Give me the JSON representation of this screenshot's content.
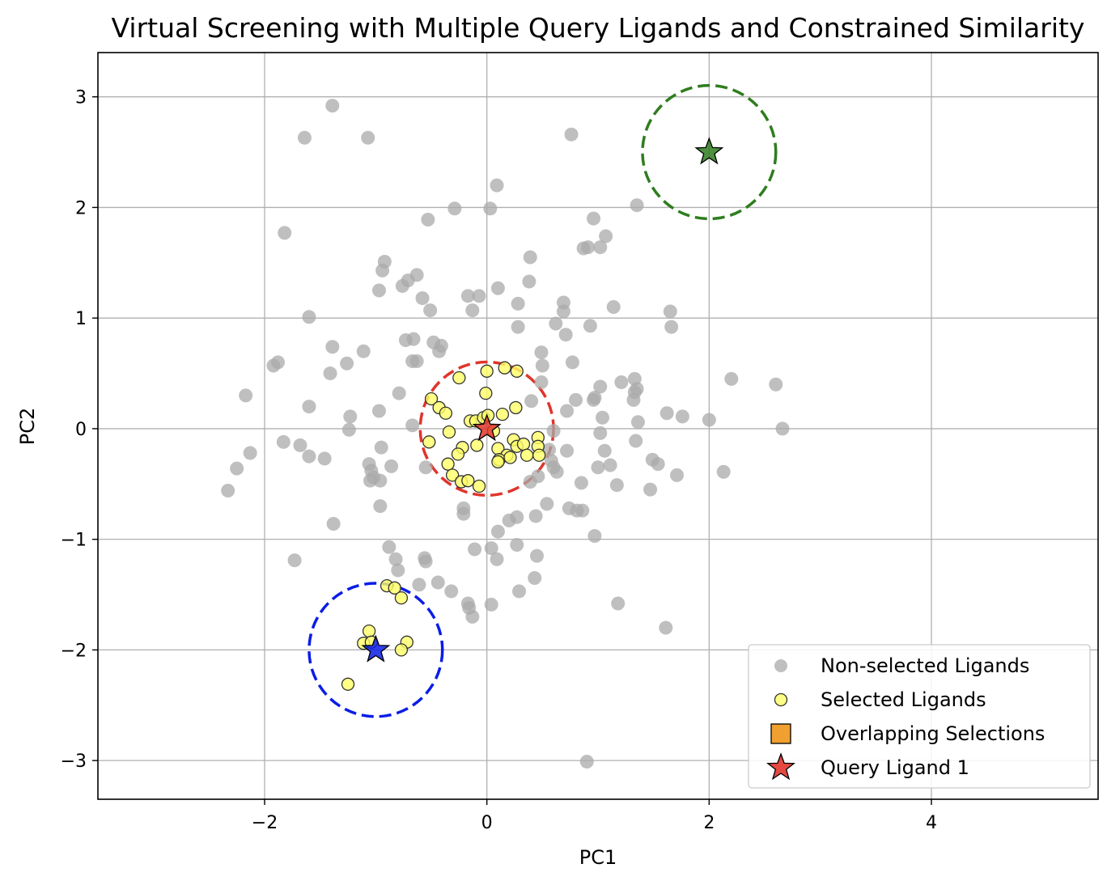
{
  "chart_data": {
    "type": "scatter",
    "title": "Virtual Screening with Multiple Query Ligands and Constrained Similarity",
    "xlabel": "PC1",
    "ylabel": "PC2",
    "xlim": [
      -3.5,
      5.5
    ],
    "ylim": [
      -3.35,
      3.4
    ],
    "xticks": [
      -2,
      0,
      2,
      4
    ],
    "xtick_labels": [
      "−2",
      "0",
      "2",
      "4"
    ],
    "yticks": [
      -3,
      -2,
      -1,
      0,
      1,
      2,
      3
    ],
    "ytick_labels": [
      "−3",
      "−2",
      "−1",
      "0",
      "1",
      "2",
      "3"
    ],
    "grid": true,
    "legend_position": "lower-right",
    "legend": [
      {
        "label": "Non-selected Ligands",
        "marker": "circle",
        "color": "#a9a9a9"
      },
      {
        "label": "Selected Ligands",
        "marker": "circle",
        "color": "#ffff66"
      },
      {
        "label": "Overlapping Selections",
        "marker": "square",
        "color": "#f0a030"
      },
      {
        "label": "Query Ligand 1",
        "marker": "star",
        "color": "#e0352b"
      }
    ],
    "colors": {
      "non_selected": "#a9a9a9",
      "selected_fill": "#ffff66",
      "selected_edge": "#333333",
      "grid": "#b0b0b0"
    },
    "queries": [
      {
        "x": 0,
        "y": 0,
        "radius": 0.6,
        "color": "#e0352b"
      },
      {
        "x": -1,
        "y": -2,
        "radius": 0.6,
        "color": "#0a1de6"
      },
      {
        "x": 2,
        "y": 2.5,
        "radius": 0.6,
        "color": "#2e7d1e"
      }
    ],
    "non_selected": [
      [
        -1.39,
        2.92
      ],
      [
        -1.64,
        2.63
      ],
      [
        -1.07,
        2.63
      ],
      [
        0.76,
        2.66
      ],
      [
        0.09,
        2.2
      ],
      [
        0.03,
        1.99
      ],
      [
        -0.29,
        1.99
      ],
      [
        -0.53,
        1.89
      ],
      [
        0.96,
        1.9
      ],
      [
        1.35,
        2.02
      ],
      [
        1.07,
        1.74
      ],
      [
        0.87,
        1.63
      ],
      [
        0.91,
        1.64
      ],
      [
        1.02,
        1.64
      ],
      [
        -1.82,
        1.77
      ],
      [
        0.39,
        1.55
      ],
      [
        -0.92,
        1.51
      ],
      [
        -0.94,
        1.43
      ],
      [
        -0.63,
        1.39
      ],
      [
        -0.71,
        1.34
      ],
      [
        -0.76,
        1.29
      ],
      [
        -0.97,
        1.25
      ],
      [
        0.1,
        1.27
      ],
      [
        0.38,
        1.33
      ],
      [
        -0.17,
        1.2
      ],
      [
        -0.07,
        1.2
      ],
      [
        -0.58,
        1.18
      ],
      [
        -0.51,
        1.07
      ],
      [
        -0.13,
        1.07
      ],
      [
        0.28,
        1.13
      ],
      [
        0.69,
        1.14
      ],
      [
        0.69,
        1.06
      ],
      [
        1.14,
        1.1
      ],
      [
        1.65,
        1.06
      ],
      [
        -1.6,
        1.01
      ],
      [
        0.28,
        0.92
      ],
      [
        0.62,
        0.95
      ],
      [
        0.93,
        0.93
      ],
      [
        1.66,
        0.92
      ],
      [
        0.71,
        0.85
      ],
      [
        -0.73,
        0.8
      ],
      [
        -0.66,
        0.81
      ],
      [
        -0.48,
        0.78
      ],
      [
        -0.41,
        0.75
      ],
      [
        -0.43,
        0.7
      ],
      [
        -1.39,
        0.74
      ],
      [
        -1.11,
        0.7
      ],
      [
        -1.26,
        0.59
      ],
      [
        -1.41,
        0.5
      ],
      [
        -0.63,
        0.61
      ],
      [
        -0.67,
        0.61
      ],
      [
        0.49,
        0.69
      ],
      [
        0.5,
        0.57
      ],
      [
        0.77,
        0.6
      ],
      [
        -1.92,
        0.57
      ],
      [
        -1.88,
        0.6
      ],
      [
        2.2,
        0.45
      ],
      [
        2.6,
        0.4
      ],
      [
        1.33,
        0.45
      ],
      [
        1.21,
        0.42
      ],
      [
        1.02,
        0.38
      ],
      [
        0.49,
        0.42
      ],
      [
        1.33,
        0.33
      ],
      [
        1.35,
        0.36
      ],
      [
        -2.17,
        0.3
      ],
      [
        -0.79,
        0.32
      ],
      [
        0.8,
        0.26
      ],
      [
        0.96,
        0.26
      ],
      [
        0.97,
        0.28
      ],
      [
        1.32,
        0.26
      ],
      [
        -1.6,
        0.2
      ],
      [
        -0.97,
        0.16
      ],
      [
        0.4,
        0.25
      ],
      [
        0.72,
        0.16
      ],
      [
        1.62,
        0.14
      ],
      [
        1.76,
        0.11
      ],
      [
        2.0,
        0.08
      ],
      [
        -1.23,
        0.11
      ],
      [
        1.04,
        0.1
      ],
      [
        1.36,
        0.06
      ],
      [
        -0.67,
        0.03
      ],
      [
        -1.24,
        -0.01
      ],
      [
        0.6,
        -0.02
      ],
      [
        1.02,
        -0.04
      ],
      [
        2.66,
        0.0
      ],
      [
        -0.95,
        -0.17
      ],
      [
        -1.83,
        -0.12
      ],
      [
        -1.68,
        -0.15
      ],
      [
        1.34,
        -0.11
      ],
      [
        0.56,
        -0.19
      ],
      [
        0.72,
        -0.2
      ],
      [
        1.06,
        -0.2
      ],
      [
        -2.13,
        -0.22
      ],
      [
        -1.6,
        -0.25
      ],
      [
        -1.46,
        -0.27
      ],
      [
        1.49,
        -0.28
      ],
      [
        1.54,
        -0.32
      ],
      [
        -0.86,
        -0.34
      ],
      [
        -0.55,
        -0.35
      ],
      [
        0.58,
        -0.29
      ],
      [
        0.6,
        -0.35
      ],
      [
        1.0,
        -0.35
      ],
      [
        1.11,
        -0.33
      ],
      [
        -2.25,
        -0.36
      ],
      [
        -1.06,
        -0.32
      ],
      [
        -1.04,
        -0.38
      ],
      [
        -1.02,
        -0.44
      ],
      [
        -1.05,
        -0.47
      ],
      [
        -0.96,
        -0.47
      ],
      [
        0.63,
        -0.39
      ],
      [
        0.46,
        -0.43
      ],
      [
        0.39,
        -0.48
      ],
      [
        1.71,
        -0.42
      ],
      [
        2.13,
        -0.39
      ],
      [
        0.85,
        -0.49
      ],
      [
        1.17,
        -0.51
      ],
      [
        1.47,
        -0.55
      ],
      [
        -2.33,
        -0.56
      ],
      [
        0.54,
        -0.68
      ],
      [
        -0.96,
        -0.7
      ],
      [
        -0.21,
        -0.72
      ],
      [
        -0.21,
        -0.77
      ],
      [
        0.74,
        -0.72
      ],
      [
        0.81,
        -0.74
      ],
      [
        0.86,
        -0.74
      ],
      [
        0.2,
        -0.83
      ],
      [
        0.27,
        -0.8
      ],
      [
        0.44,
        -0.79
      ],
      [
        -1.38,
        -0.86
      ],
      [
        0.1,
        -0.93
      ],
      [
        0.97,
        -0.97
      ],
      [
        -0.88,
        -1.07
      ],
      [
        -0.11,
        -1.09
      ],
      [
        0.04,
        -1.08
      ],
      [
        0.27,
        -1.05
      ],
      [
        0.09,
        -1.18
      ],
      [
        -0.82,
        -1.18
      ],
      [
        -0.56,
        -1.17
      ],
      [
        -0.55,
        -1.2
      ],
      [
        0.45,
        -1.15
      ],
      [
        -1.73,
        -1.19
      ],
      [
        -0.8,
        -1.28
      ],
      [
        0.43,
        -1.35
      ],
      [
        -0.61,
        -1.41
      ],
      [
        -0.44,
        -1.39
      ],
      [
        1.18,
        -1.58
      ],
      [
        0.29,
        -1.47
      ],
      [
        -0.32,
        -1.47
      ],
      [
        -0.17,
        -1.58
      ],
      [
        -0.16,
        -1.62
      ],
      [
        -0.13,
        -1.7
      ],
      [
        0.04,
        -1.59
      ],
      [
        1.61,
        -1.8
      ],
      [
        0.9,
        -3.01
      ]
    ],
    "selected": [
      [
        -0.25,
        0.46
      ],
      [
        0.0,
        0.52
      ],
      [
        0.16,
        0.55
      ],
      [
        0.27,
        0.52
      ],
      [
        -0.01,
        0.32
      ],
      [
        -0.5,
        0.27
      ],
      [
        -0.43,
        0.19
      ],
      [
        -0.37,
        0.14
      ],
      [
        0.26,
        0.19
      ],
      [
        -0.15,
        0.07
      ],
      [
        -0.1,
        0.07
      ],
      [
        -0.03,
        0.1
      ],
      [
        0.01,
        0.12
      ],
      [
        0.14,
        0.13
      ],
      [
        -0.34,
        -0.03
      ],
      [
        0.06,
        -0.02
      ],
      [
        -0.52,
        -0.12
      ],
      [
        -0.09,
        -0.15
      ],
      [
        -0.22,
        -0.17
      ],
      [
        0.1,
        -0.18
      ],
      [
        0.24,
        -0.1
      ],
      [
        0.27,
        -0.16
      ],
      [
        0.33,
        -0.14
      ],
      [
        0.46,
        -0.08
      ],
      [
        0.46,
        -0.16
      ],
      [
        -0.26,
        -0.23
      ],
      [
        0.18,
        -0.24
      ],
      [
        0.36,
        -0.24
      ],
      [
        0.11,
        -0.28
      ],
      [
        0.21,
        -0.26
      ],
      [
        0.47,
        -0.24
      ],
      [
        0.1,
        -0.3
      ],
      [
        -0.35,
        -0.32
      ],
      [
        -0.31,
        -0.42
      ],
      [
        -0.23,
        -0.48
      ],
      [
        -0.17,
        -0.47
      ],
      [
        -0.07,
        -0.52
      ],
      [
        -0.9,
        -1.42
      ],
      [
        -0.83,
        -1.44
      ],
      [
        -0.77,
        -1.53
      ],
      [
        -1.06,
        -1.83
      ],
      [
        -1.11,
        -1.94
      ],
      [
        -1.04,
        -1.93
      ],
      [
        -0.72,
        -1.93
      ],
      [
        -0.77,
        -2.0
      ],
      [
        -1.25,
        -2.31
      ]
    ]
  }
}
